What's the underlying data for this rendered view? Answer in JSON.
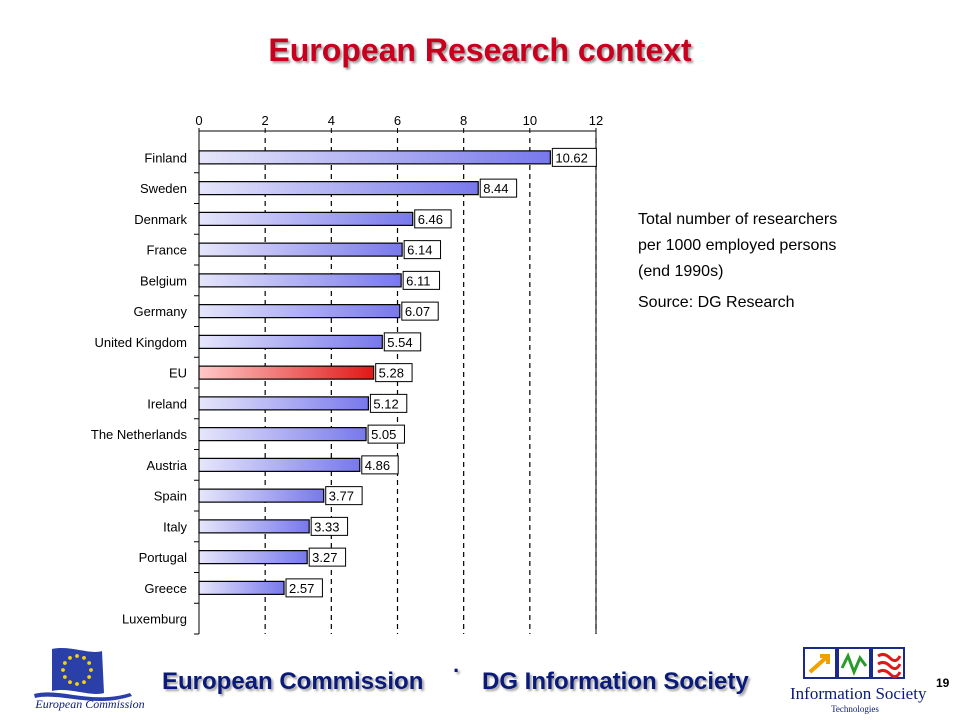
{
  "slide": {
    "title": "European Research context",
    "note_line1": "Total number of researchers",
    "note_line2": "per 1000 employed persons",
    "note_line3": "(end 1990s)",
    "source": "Source: DG Research",
    "page_number": "19"
  },
  "footer": {
    "left_text": "European Commission",
    "separator": "·",
    "right_text": "DG Information Society",
    "ec_logo_caption": "European Commission",
    "is_logo_name": "Information Society",
    "is_logo_sub": "Technologies"
  },
  "colors": {
    "title": "#c8001e",
    "footer_text": "#0a1a7a",
    "bar_default_light": "#e6e6fb",
    "bar_default_dark": "#7878ec",
    "bar_highlight_light": "#ffc8c8",
    "bar_highlight_dark": "#e01818"
  },
  "chart_data": {
    "type": "bar",
    "orientation": "horizontal",
    "title": "",
    "xlabel": "",
    "ylabel": "",
    "xlim": [
      0,
      12
    ],
    "xticks": [
      0,
      2,
      4,
      6,
      8,
      10,
      12
    ],
    "grid": "vertical dashed",
    "categories": [
      "Finland",
      "Sweden",
      "Denmark",
      "France",
      "Belgium",
      "Germany",
      "United Kingdom",
      "EU",
      "Ireland",
      "The Netherlands",
      "Austria",
      "Spain",
      "Italy",
      "Portugal",
      "Greece",
      "Luxemburg"
    ],
    "values": [
      10.62,
      8.44,
      6.46,
      6.14,
      6.11,
      6.07,
      5.54,
      5.28,
      5.12,
      5.05,
      4.86,
      3.77,
      3.33,
      3.27,
      2.57,
      null
    ],
    "value_labels": [
      "10.62",
      "8.44",
      "6.46",
      "6.14",
      "6.11",
      "6.07",
      "5.54",
      "5.28",
      "5.12",
      "5.05",
      "4.86",
      "3.77",
      "3.33",
      "3.27",
      "2.57",
      ""
    ],
    "highlight": "EU"
  }
}
